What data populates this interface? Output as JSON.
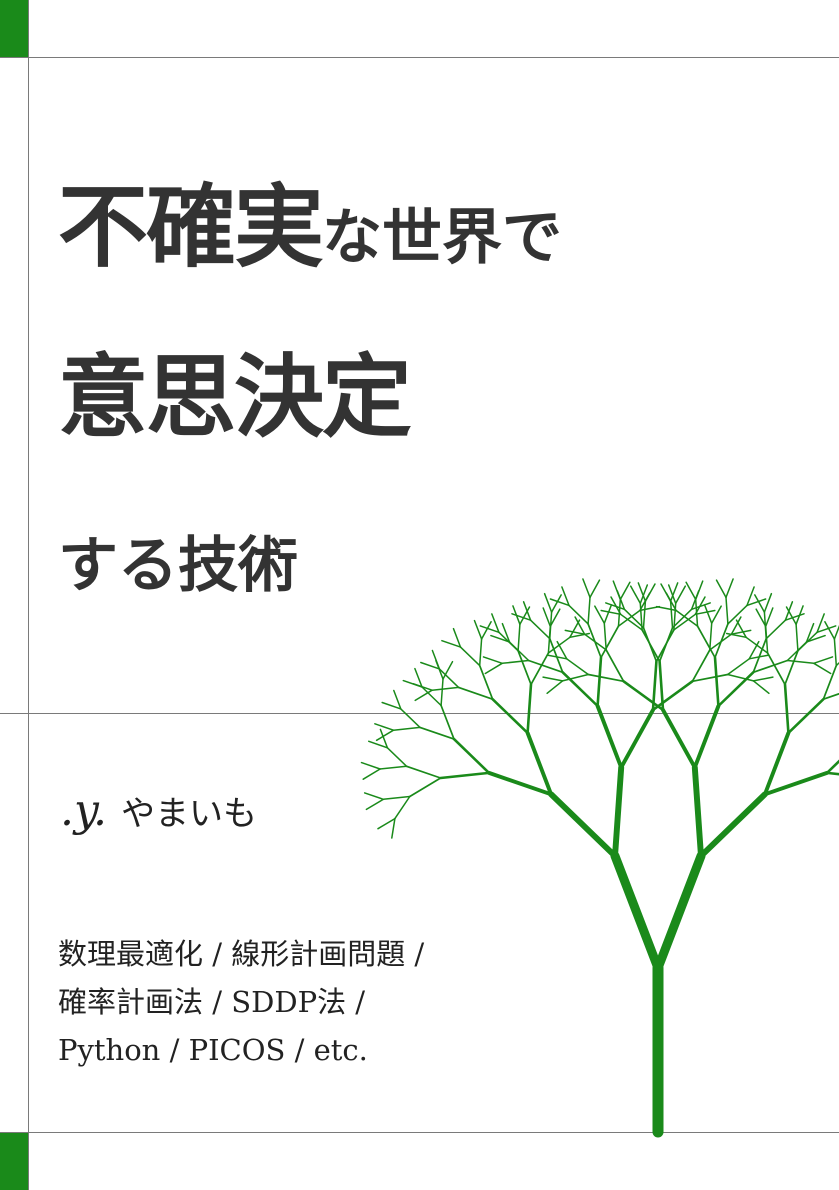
{
  "colors": {
    "accent": "#1a8a1a",
    "rule": "#7a7a7a",
    "text": "#333333",
    "background": "#ffffff"
  },
  "cover": {
    "title": {
      "line1_large": "不確実",
      "line1_small": "な世界で",
      "line2": "意思決定",
      "line3": "する技術"
    },
    "author": {
      "mark": ".y.",
      "name": "やまいも"
    },
    "tags": [
      "数理最適化 / 線形計画問題 /",
      "確率計画法 / SDDP法 /",
      "Python / PICOS / etc."
    ],
    "illustration": "fractal-tree"
  }
}
